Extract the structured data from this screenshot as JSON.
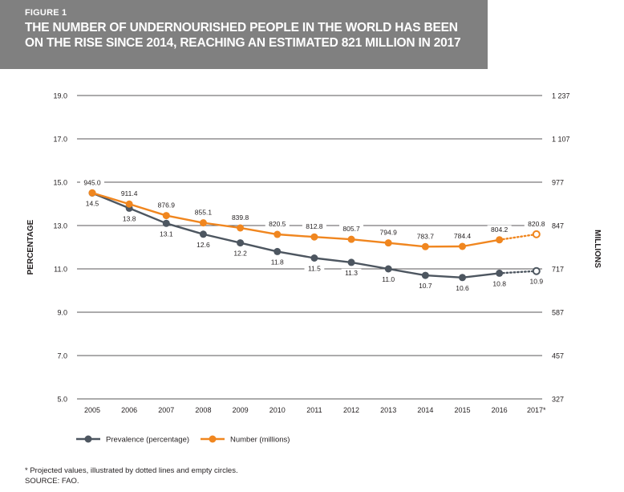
{
  "figure_label": "FIGURE 1",
  "title": "THE NUMBER OF UNDERNOURISHED PEOPLE IN THE WORLD HAS BEEN ON THE RISE SINCE 2014, REACHING AN ESTIMATED 821 MILLION IN 2017",
  "footnote": "* Projected values, illustrated by dotted lines and empty circles.",
  "source": "SOURCE: FAO.",
  "colors": {
    "prevalence": "#4d5660",
    "number": "#f0861f",
    "header_bg": "#808080"
  },
  "chart_data": {
    "type": "line",
    "categories": [
      "2005",
      "2006",
      "2007",
      "2008",
      "2009",
      "2010",
      "2011",
      "2012",
      "2013",
      "2014",
      "2015",
      "2016",
      "2017*"
    ],
    "ylabel": "PERCENTAGE",
    "y2label": "MILLIONS",
    "ylim": [
      5.0,
      19.0
    ],
    "y2lim": [
      327,
      1237
    ],
    "yticks": [
      "5.0",
      "7.0",
      "9.0",
      "11.0",
      "13.0",
      "15.0",
      "17.0",
      "19.0"
    ],
    "y2ticks": [
      "327",
      "457",
      "587",
      "717",
      "847",
      "977",
      "1 107",
      "1 237"
    ],
    "grid": true,
    "legend_position": "bottom-left",
    "projected_from_index": 12,
    "series": [
      {
        "name": "Prevalence (percentage)",
        "axis": "left",
        "values": [
          14.5,
          13.8,
          13.1,
          12.6,
          12.2,
          11.8,
          11.5,
          11.3,
          11.0,
          10.7,
          10.6,
          10.8,
          10.9
        ],
        "labels": [
          "14.5",
          "13.8",
          "13.1",
          "12.6",
          "12.2",
          "11.8",
          "11.5",
          "11.3",
          "11.0",
          "10.7",
          "10.6",
          "10.8",
          "10.9"
        ]
      },
      {
        "name": "Number (millions)",
        "axis": "right",
        "values": [
          945.0,
          911.4,
          876.9,
          855.1,
          839.8,
          820.5,
          812.8,
          805.7,
          794.9,
          783.7,
          784.4,
          804.2,
          820.8
        ],
        "labels": [
          "945.0",
          "911.4",
          "876.9",
          "855.1",
          "839.8",
          "820.5",
          "812.8",
          "805.7",
          "794.9",
          "783.7",
          "784.4",
          "804.2",
          "820.8"
        ]
      }
    ]
  }
}
